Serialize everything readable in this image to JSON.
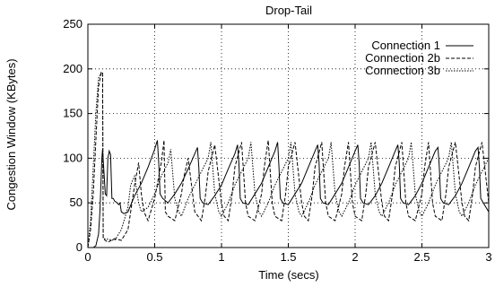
{
  "chart_data": {
    "type": "line",
    "title": "Drop-Tail",
    "xlabel": "Time (secs)",
    "ylabel": "Congestion Window (KBytes)",
    "xlim": [
      0,
      3
    ],
    "ylim": [
      0,
      250
    ],
    "xticks": [
      0,
      0.5,
      1,
      1.5,
      2,
      2.5,
      3
    ],
    "xtick_labels": [
      "0",
      "0.5",
      "1",
      "1.5",
      "2",
      "2.5",
      "3"
    ],
    "yticks": [
      0,
      50,
      100,
      150,
      200,
      250
    ],
    "ytick_labels": [
      "0",
      "50",
      "100",
      "150",
      "200",
      "250"
    ],
    "grid": true,
    "legend_position": "top-right",
    "series": [
      {
        "name": "Connection 1",
        "dash": "solid",
        "x": [
          0,
          0.04,
          0.06,
          0.08,
          0.09,
          0.1,
          0.105,
          0.11,
          0.13,
          0.14,
          0.15,
          0.16,
          0.17,
          0.18,
          0.19,
          0.2,
          0.22,
          0.23,
          0.24,
          0.25,
          0.27,
          0.3,
          0.35,
          0.4,
          0.45,
          0.5,
          0.52,
          0.53,
          0.54,
          0.56,
          0.6,
          0.65,
          0.7,
          0.75,
          0.8,
          0.82,
          0.83,
          0.84,
          0.86,
          0.9,
          0.95,
          1.0,
          1.05,
          1.1,
          1.12,
          1.13,
          1.14,
          1.16,
          1.2,
          1.25,
          1.3,
          1.35,
          1.4,
          1.42,
          1.43,
          1.44,
          1.46,
          1.5,
          1.55,
          1.6,
          1.65,
          1.7,
          1.72,
          1.73,
          1.74,
          1.76,
          1.8,
          1.85,
          1.9,
          1.95,
          2.0,
          2.02,
          2.03,
          2.04,
          2.06,
          2.1,
          2.15,
          2.2,
          2.25,
          2.3,
          2.32,
          2.33,
          2.34,
          2.36,
          2.4,
          2.45,
          2.5,
          2.55,
          2.6,
          2.62,
          2.63,
          2.64,
          2.66,
          2.7,
          2.75,
          2.8,
          2.85,
          2.9,
          2.92,
          2.93,
          2.94,
          2.96,
          3.0
        ],
        "y": [
          0,
          0,
          2,
          15,
          40,
          80,
          100,
          110,
          60,
          58,
          100,
          108,
          104,
          55,
          55,
          52,
          50,
          48,
          50,
          40,
          38,
          40,
          58,
          72,
          90,
          110,
          120,
          95,
          60,
          55,
          50,
          60,
          72,
          88,
          105,
          112,
          90,
          55,
          50,
          48,
          58,
          70,
          88,
          105,
          115,
          95,
          55,
          50,
          48,
          60,
          72,
          90,
          108,
          118,
          90,
          55,
          50,
          48,
          60,
          72,
          90,
          108,
          115,
          95,
          55,
          50,
          48,
          60,
          72,
          90,
          108,
          115,
          95,
          55,
          50,
          48,
          58,
          72,
          90,
          108,
          115,
          95,
          55,
          50,
          48,
          58,
          72,
          90,
          108,
          112,
          90,
          55,
          50,
          48,
          58,
          72,
          90,
          108,
          112,
          90,
          55,
          50,
          40
        ]
      },
      {
        "name": "Connection 2b",
        "dash": "dashed",
        "x": [
          0,
          0.02,
          0.04,
          0.06,
          0.08,
          0.1,
          0.11,
          0.115,
          0.13,
          0.15,
          0.2,
          0.25,
          0.3,
          0.32,
          0.35,
          0.38,
          0.4,
          0.42,
          0.45,
          0.5,
          0.55,
          0.57,
          0.58,
          0.6,
          0.65,
          0.7,
          0.72,
          0.75,
          0.78,
          0.8,
          0.85,
          0.88,
          0.9,
          0.95,
          1.0,
          1.02,
          1.05,
          1.08,
          1.1,
          1.15,
          1.18,
          1.2,
          1.25,
          1.3,
          1.32,
          1.35,
          1.38,
          1.4,
          1.45,
          1.48,
          1.5,
          1.55,
          1.6,
          1.62,
          1.65,
          1.68,
          1.7,
          1.75,
          1.78,
          1.8,
          1.85,
          1.9,
          1.92,
          1.95,
          1.98,
          2.0,
          2.05,
          2.08,
          2.1,
          2.15,
          2.2,
          2.22,
          2.25,
          2.28,
          2.3,
          2.35,
          2.38,
          2.4,
          2.45,
          2.5,
          2.52,
          2.55,
          2.58,
          2.6,
          2.65,
          2.68,
          2.7,
          2.75,
          2.8,
          2.82,
          2.85,
          2.88,
          2.9,
          2.95,
          3.0
        ],
        "y": [
          0,
          20,
          60,
          120,
          180,
          196,
          196,
          10,
          8,
          6,
          10,
          8,
          20,
          40,
          70,
          95,
          60,
          40,
          30,
          55,
          95,
          120,
          40,
          35,
          30,
          60,
          80,
          100,
          65,
          40,
          30,
          58,
          85,
          115,
          50,
          35,
          30,
          60,
          90,
          118,
          50,
          35,
          30,
          60,
          90,
          120,
          50,
          35,
          30,
          60,
          90,
          118,
          50,
          35,
          30,
          60,
          90,
          118,
          50,
          35,
          30,
          60,
          90,
          118,
          50,
          35,
          30,
          60,
          90,
          118,
          50,
          35,
          30,
          60,
          90,
          118,
          50,
          35,
          30,
          60,
          90,
          118,
          50,
          35,
          30,
          60,
          90,
          118,
          50,
          35,
          30,
          60,
          90,
          118,
          50
        ]
      },
      {
        "name": "Connection 3b",
        "dash": "dotted",
        "x": [
          0,
          0.02,
          0.04,
          0.06,
          0.08,
          0.1,
          0.11,
          0.115,
          0.2,
          0.25,
          0.3,
          0.32,
          0.35,
          0.38,
          0.4,
          0.45,
          0.5,
          0.55,
          0.6,
          0.62,
          0.65,
          0.68,
          0.7,
          0.75,
          0.8,
          0.85,
          0.9,
          0.92,
          0.95,
          0.98,
          1.0,
          1.05,
          1.1,
          1.15,
          1.2,
          1.22,
          1.25,
          1.28,
          1.3,
          1.35,
          1.4,
          1.45,
          1.5,
          1.52,
          1.55,
          1.58,
          1.6,
          1.65,
          1.7,
          1.75,
          1.8,
          1.82,
          1.85,
          1.88,
          1.9,
          1.95,
          2.0,
          2.05,
          2.1,
          2.12,
          2.15,
          2.18,
          2.2,
          2.25,
          2.3,
          2.35,
          2.4,
          2.42,
          2.45,
          2.48,
          2.5,
          2.55,
          2.6,
          2.65,
          2.7,
          2.72,
          2.75,
          2.78,
          2.8,
          2.85,
          2.9,
          2.95,
          3.0
        ],
        "y": [
          0,
          30,
          90,
          150,
          190,
          196,
          196,
          10,
          8,
          20,
          45,
          70,
          80,
          50,
          40,
          45,
          60,
          80,
          95,
          110,
          55,
          40,
          35,
          55,
          70,
          85,
          100,
          118,
          60,
          40,
          35,
          50,
          70,
          85,
          100,
          118,
          60,
          40,
          35,
          50,
          70,
          85,
          100,
          118,
          60,
          40,
          35,
          50,
          70,
          85,
          100,
          118,
          60,
          40,
          35,
          50,
          70,
          85,
          100,
          118,
          60,
          40,
          35,
          50,
          70,
          85,
          100,
          118,
          60,
          40,
          35,
          50,
          70,
          85,
          100,
          118,
          60,
          40,
          35,
          50,
          70,
          85,
          100
        ]
      }
    ]
  }
}
